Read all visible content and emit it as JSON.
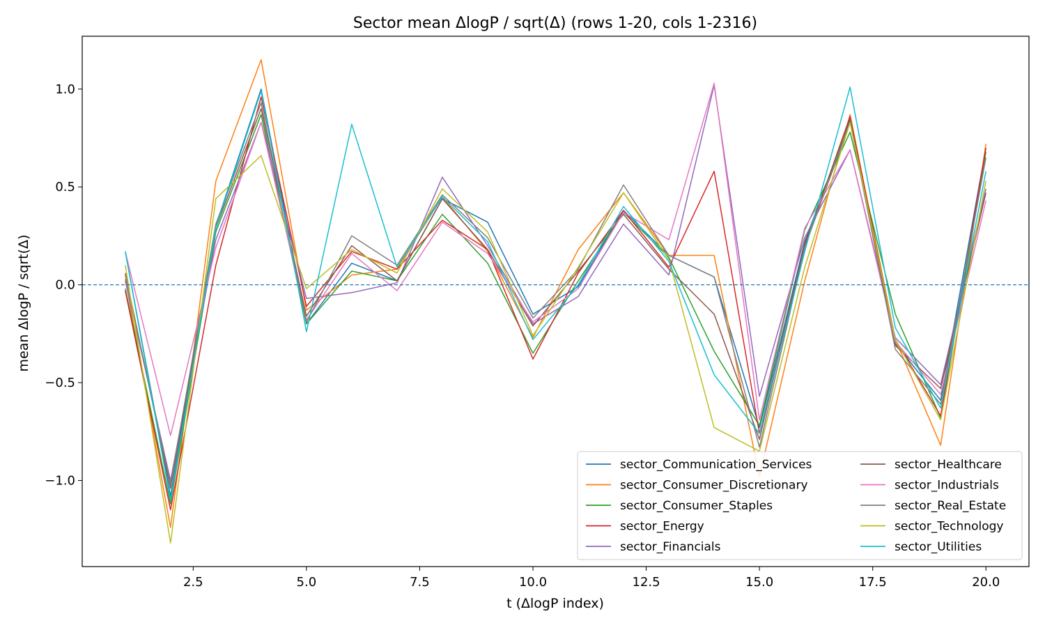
{
  "chart_data": {
    "type": "line",
    "title": "Sector mean ΔlogP / sqrt(Δ) (rows 1-20, cols 1-2316)",
    "xlabel": "t (ΔlogP index)",
    "ylabel": "mean ΔlogP / sqrt(Δ)",
    "xlim": [
      0.05,
      20.95
    ],
    "ylim": [
      -1.44,
      1.27
    ],
    "x_ticks": [
      2.5,
      5.0,
      7.5,
      10.0,
      12.5,
      15.0,
      17.5,
      20.0
    ],
    "x_tick_labels": [
      "2.5",
      "5.0",
      "7.5",
      "10.0",
      "12.5",
      "15.0",
      "17.5",
      "20.0"
    ],
    "y_ticks": [
      -1.0,
      -0.5,
      0.0,
      0.5,
      1.0
    ],
    "y_tick_labels": [
      "−1.0",
      "−0.5",
      "0.0",
      "0.5",
      "1.0"
    ],
    "grid": false,
    "reference_line": {
      "y": 0,
      "style": "dashed",
      "color": "#1f77b4"
    },
    "legend_position": "lower-right",
    "x": [
      1,
      2,
      3,
      4,
      5,
      6,
      7,
      8,
      9,
      10,
      11,
      12,
      13,
      14,
      15,
      16,
      17,
      18,
      19,
      20
    ],
    "series": [
      {
        "name": "sector_Communication_Services",
        "color": "#1f77b4",
        "values": [
          0.17,
          -1.08,
          0.3,
          1.0,
          -0.2,
          0.11,
          0.02,
          0.44,
          0.32,
          -0.15,
          -0.01,
          0.38,
          0.15,
          0.04,
          -0.73,
          0.22,
          0.84,
          -0.3,
          -0.59,
          0.7
        ]
      },
      {
        "name": "sector_Consumer_Discretionary",
        "color": "#ff7f0e",
        "values": [
          0.03,
          -1.24,
          0.53,
          1.15,
          -0.13,
          0.05,
          0.08,
          0.45,
          0.17,
          -0.27,
          0.18,
          0.47,
          0.15,
          0.15,
          -0.98,
          0.02,
          0.87,
          -0.28,
          -0.82,
          0.72
        ]
      },
      {
        "name": "sector_Consumer_Staples",
        "color": "#2ca02c",
        "values": [
          -0.02,
          -1.12,
          0.27,
          0.87,
          -0.2,
          0.07,
          0.02,
          0.36,
          0.11,
          -0.35,
          0.02,
          0.37,
          0.14,
          -0.34,
          -0.72,
          0.28,
          0.78,
          -0.15,
          -0.68,
          0.68
        ]
      },
      {
        "name": "sector_Energy",
        "color": "#d62728",
        "values": [
          -0.03,
          -1.15,
          0.1,
          0.96,
          -0.11,
          0.17,
          0.08,
          0.33,
          0.18,
          -0.38,
          0.06,
          0.38,
          0.09,
          0.58,
          -0.76,
          0.2,
          0.86,
          -0.28,
          -0.67,
          0.7
        ]
      },
      {
        "name": "sector_Financials",
        "color": "#9467bd",
        "values": [
          0.02,
          -1.0,
          0.23,
          0.83,
          -0.07,
          -0.04,
          0.01,
          0.55,
          0.2,
          -0.2,
          -0.06,
          0.31,
          0.05,
          1.02,
          -0.57,
          0.24,
          0.69,
          -0.27,
          -0.51,
          0.49
        ]
      },
      {
        "name": "sector_Healthcare",
        "color": "#8c564b",
        "values": [
          0.06,
          -1.04,
          0.29,
          0.9,
          -0.16,
          0.2,
          0.02,
          0.44,
          0.18,
          -0.21,
          0.07,
          0.36,
          0.08,
          -0.15,
          -0.79,
          0.21,
          0.85,
          -0.31,
          -0.53,
          0.47
        ]
      },
      {
        "name": "sector_Industrials",
        "color": "#e377c2",
        "values": [
          0.17,
          -0.77,
          0.19,
          0.83,
          -0.18,
          0.16,
          -0.03,
          0.32,
          0.16,
          -0.19,
          -0.02,
          0.37,
          0.23,
          1.03,
          -0.69,
          0.29,
          0.69,
          -0.29,
          -0.56,
          0.43
        ]
      },
      {
        "name": "sector_Real_Estate",
        "color": "#7f7f7f",
        "values": [
          0.05,
          -1.02,
          0.31,
          0.93,
          -0.19,
          0.25,
          0.1,
          0.46,
          0.24,
          -0.17,
          0.08,
          0.51,
          0.15,
          0.04,
          -0.83,
          0.19,
          0.83,
          -0.33,
          -0.61,
          0.65
        ]
      },
      {
        "name": "sector_Technology",
        "color": "#bcbd22",
        "values": [
          0.1,
          -1.32,
          0.44,
          0.66,
          -0.02,
          0.18,
          0.06,
          0.49,
          0.27,
          -0.26,
          0.09,
          0.47,
          0.13,
          -0.73,
          -0.85,
          0.09,
          0.83,
          -0.28,
          -0.69,
          0.53
        ]
      },
      {
        "name": "sector_Utilities",
        "color": "#17becf",
        "values": [
          0.17,
          -1.1,
          0.29,
          0.99,
          -0.24,
          0.82,
          0.09,
          0.45,
          0.22,
          -0.28,
          0.0,
          0.4,
          0.12,
          -0.46,
          -0.76,
          0.17,
          1.01,
          -0.22,
          -0.63,
          0.58
        ]
      }
    ]
  }
}
